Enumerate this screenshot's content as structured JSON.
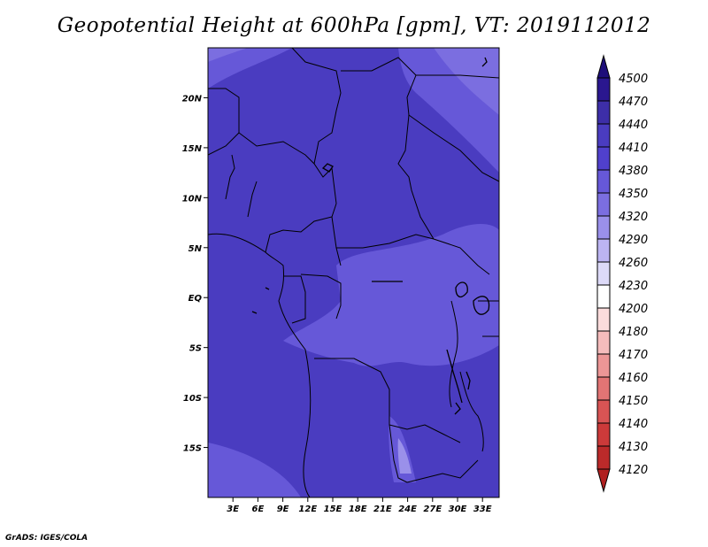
{
  "title": "Geopotential Height at 600hPa [gpm], VT: 2019112012",
  "credit": "GrADS: IGES/COLA",
  "map": {
    "lon_range": [
      0,
      35
    ],
    "lat_range": [
      -20,
      25
    ],
    "lat_ticks": [
      {
        "value": 20,
        "label": "20N"
      },
      {
        "value": 15,
        "label": "15N"
      },
      {
        "value": 10,
        "label": "10N"
      },
      {
        "value": 5,
        "label": "5N"
      },
      {
        "value": 0,
        "label": "EQ"
      },
      {
        "value": -5,
        "label": "5S"
      },
      {
        "value": -10,
        "label": "10S"
      },
      {
        "value": -15,
        "label": "15S"
      }
    ],
    "lon_ticks": [
      {
        "value": 3,
        "label": "3E"
      },
      {
        "value": 6,
        "label": "6E"
      },
      {
        "value": 9,
        "label": "9E"
      },
      {
        "value": 12,
        "label": "12E"
      },
      {
        "value": 15,
        "label": "15E"
      },
      {
        "value": 18,
        "label": "18E"
      },
      {
        "value": 21,
        "label": "21E"
      },
      {
        "value": 24,
        "label": "24E"
      },
      {
        "value": 27,
        "label": "27E"
      },
      {
        "value": 30,
        "label": "30E"
      },
      {
        "value": 33,
        "label": "33E"
      }
    ]
  },
  "colorbar": {
    "levels": [
      "4500",
      "4470",
      "4440",
      "4410",
      "4380",
      "4350",
      "4320",
      "4290",
      "4260",
      "4230",
      "4200",
      "4180",
      "4170",
      "4160",
      "4150",
      "4140",
      "4130",
      "4120"
    ],
    "colors": [
      "#2a178f",
      "#3d2ea8",
      "#4a3cc0",
      "#5040cc",
      "#6658d8",
      "#7b6ee0",
      "#9a90ea",
      "#bcb4f2",
      "#dddaf8",
      "#ffffff",
      "#fbdcdc",
      "#f5bcbc",
      "#ec9696",
      "#e27474",
      "#d85454",
      "#cc3a3a",
      "#bb2a2a"
    ],
    "top_color": "#1e0e7a",
    "bottom_color": "#b02020"
  },
  "field_colors": {
    "base": "#4a3cc0",
    "light": "#6658d8",
    "lighter": "#7b6ee0",
    "lightest": "#9a90ea",
    "dark": "#3d2ea8"
  }
}
